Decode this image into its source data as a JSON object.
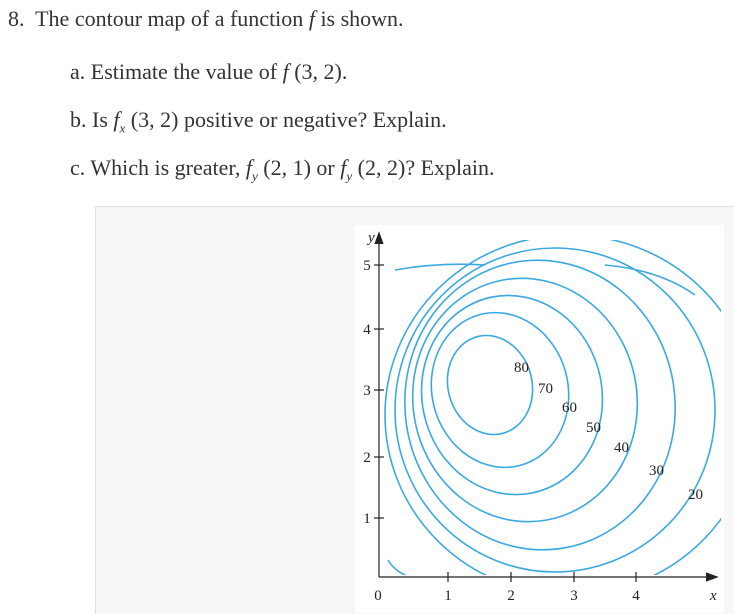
{
  "question": {
    "number": "8.",
    "text": "The contour map of a function",
    "fn": "f",
    "tail": "is shown."
  },
  "parts": [
    {
      "lead": "a. Estimate the value of",
      "fn": "f",
      "rest": "(3, 2)."
    },
    {
      "lead": "b. Is",
      "fn": "f",
      "sub": "x",
      "rest": "(3, 2) positive or negative? Explain."
    },
    {
      "lead": "c. Which is greater,",
      "fn": "f",
      "sub": "y",
      "rest": "(2, 1) or",
      "fn2": "f",
      "sub2": "y",
      "rest2": "(2, 2)? Explain."
    }
  ],
  "figure": {
    "x_label": "x",
    "y_label": "y",
    "x_ticks": [
      "0",
      "1",
      "2",
      "3",
      "4"
    ],
    "y_ticks": [
      "1",
      "2",
      "3",
      "4",
      "5"
    ],
    "contour_labels": [
      "80",
      "70",
      "60",
      "50",
      "40",
      "30",
      "20"
    ]
  }
}
